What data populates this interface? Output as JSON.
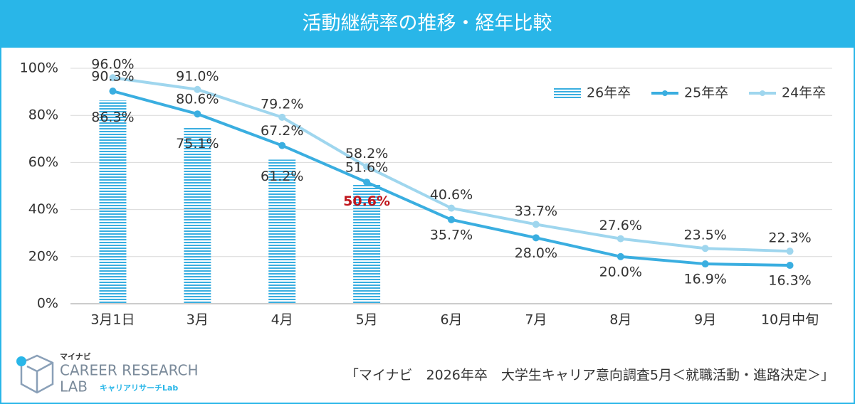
{
  "chart_data": {
    "type": "bar_line",
    "title": "活動継続率の推移・経年比較",
    "categories": [
      "3月1日",
      "3月",
      "4月",
      "5月",
      "6月",
      "7月",
      "8月",
      "9月",
      "10月中旬"
    ],
    "series": [
      {
        "name": "26年卒",
        "type": "bar",
        "color": "#3aaee0",
        "values": [
          86.3,
          75.1,
          61.2,
          50.6,
          null,
          null,
          null,
          null,
          null
        ],
        "value_labels": [
          "86.3%",
          "75.1%",
          "61.2%",
          "50.6%",
          null,
          null,
          null,
          null,
          null
        ],
        "label_colors": [
          "#333333",
          "#333333",
          "#333333",
          "#c0161c",
          null,
          null,
          null,
          null,
          null
        ]
      },
      {
        "name": "25年卒",
        "type": "line",
        "color": "#3aaee0",
        "values": [
          90.3,
          80.6,
          67.2,
          51.6,
          35.7,
          28.0,
          20.0,
          16.9,
          16.3
        ],
        "value_labels": [
          "90.3%",
          "80.6%",
          "67.2%",
          "51.6%",
          "35.7%",
          "28.0%",
          "20.0%",
          "16.9%",
          "16.3%"
        ]
      },
      {
        "name": "24年卒",
        "type": "line",
        "color": "#9fd6ee",
        "values": [
          96.0,
          91.0,
          79.2,
          58.2,
          40.6,
          33.7,
          27.6,
          23.5,
          22.3
        ],
        "value_labels": [
          "96.0%",
          "91.0%",
          "79.2%",
          "58.2%",
          "40.6%",
          "33.7%",
          "27.6%",
          "23.5%",
          "22.3%"
        ]
      }
    ],
    "ylim": [
      0,
      100
    ],
    "yticks": [
      {
        "value": 0,
        "label": "0%"
      },
      {
        "value": 20,
        "label": "20%"
      },
      {
        "value": 40,
        "label": "40%"
      },
      {
        "value": 60,
        "label": "60%"
      },
      {
        "value": 80,
        "label": "80%"
      },
      {
        "value": 100,
        "label": "100%"
      }
    ],
    "grid": true,
    "legend": "top-right",
    "source": "「マイナビ　2026年卒　大学生キャリア意向調査5月＜就職活動・進路決定＞」"
  },
  "logo": {
    "brand": "マイナビ",
    "line1": "CAREER RESEARCH",
    "line2": "LAB",
    "sub": "キャリアリサーチLab"
  }
}
